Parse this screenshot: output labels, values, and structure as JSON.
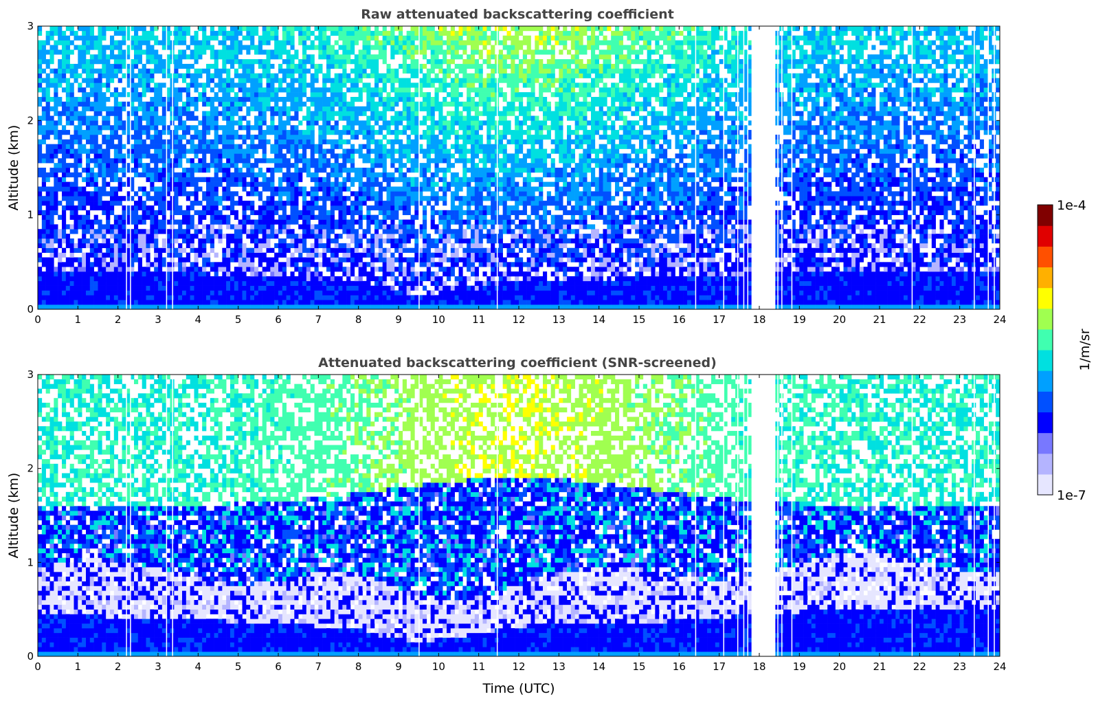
{
  "chart_data": [
    {
      "type": "heatmap",
      "title": "Raw attenuated backscattering coefficient",
      "xlabel": "",
      "ylabel": "Altitude (km)",
      "xlim": [
        0,
        24
      ],
      "ylim": [
        0,
        3
      ],
      "xticks": [
        0,
        1,
        2,
        3,
        4,
        5,
        6,
        7,
        8,
        9,
        10,
        11,
        12,
        13,
        14,
        15,
        16,
        17,
        18,
        19,
        20,
        21,
        22,
        23,
        24
      ],
      "yticks": [
        0,
        1,
        2,
        3
      ],
      "screened": false,
      "boundary_layer_top_km": [
        [
          0,
          0.42
        ],
        [
          2,
          0.4
        ],
        [
          4,
          0.38
        ],
        [
          6,
          0.34
        ],
        [
          8,
          0.3
        ],
        [
          9,
          0.18
        ],
        [
          10,
          0.14
        ],
        [
          11,
          0.22
        ],
        [
          12,
          0.3
        ],
        [
          14,
          0.32
        ],
        [
          16,
          0.34
        ],
        [
          18,
          0.38
        ],
        [
          20,
          0.4
        ],
        [
          22,
          0.42
        ],
        [
          24,
          0.42
        ]
      ]
    },
    {
      "type": "heatmap",
      "title": "Attenuated backscattering coefficient (SNR-screened)",
      "xlabel": "Time (UTC)",
      "ylabel": "Altitude (km)",
      "xlim": [
        0,
        24
      ],
      "ylim": [
        0,
        3
      ],
      "xticks": [
        0,
        1,
        2,
        3,
        4,
        5,
        6,
        7,
        8,
        9,
        10,
        11,
        12,
        13,
        14,
        15,
        16,
        17,
        18,
        19,
        20,
        21,
        22,
        23,
        24
      ],
      "yticks": [
        0,
        1,
        2,
        3
      ],
      "screened": true,
      "boundary_layer_top_km": [
        [
          0,
          0.45
        ],
        [
          2,
          0.42
        ],
        [
          4,
          0.42
        ],
        [
          5,
          0.36
        ],
        [
          7,
          0.32
        ],
        [
          8,
          0.3
        ],
        [
          8.5,
          0.22
        ],
        [
          9.5,
          0.16
        ],
        [
          10.5,
          0.2
        ],
        [
          12,
          0.32
        ],
        [
          14,
          0.35
        ],
        [
          16,
          0.38
        ],
        [
          18,
          0.45
        ],
        [
          20,
          0.5
        ],
        [
          22,
          0.52
        ],
        [
          24,
          0.5
        ]
      ]
    }
  ],
  "colorbar": {
    "label": "1/m/sr",
    "max_label": "1e-4",
    "min_label": "1e-7",
    "scale": "log",
    "colors": [
      "#e6e6ff",
      "#b4b4ff",
      "#7878ff",
      "#0000ff",
      "#0050ff",
      "#00a0ff",
      "#00e0e0",
      "#40ffb0",
      "#a0ff50",
      "#ffff00",
      "#ffb000",
      "#ff5000",
      "#e00000",
      "#800000"
    ]
  },
  "data_gaps_utc": [
    {
      "start": 17.85,
      "end": 18.05
    },
    {
      "start": 18.15,
      "end": 18.4
    }
  ],
  "thin_gaps_utc": [
    2.2,
    2.3,
    3.2,
    3.35,
    9.5,
    11.45,
    16.4,
    17.1,
    17.45,
    17.6,
    17.7,
    18.45,
    18.55,
    18.8,
    21.8,
    23.35,
    23.7,
    23.85
  ]
}
